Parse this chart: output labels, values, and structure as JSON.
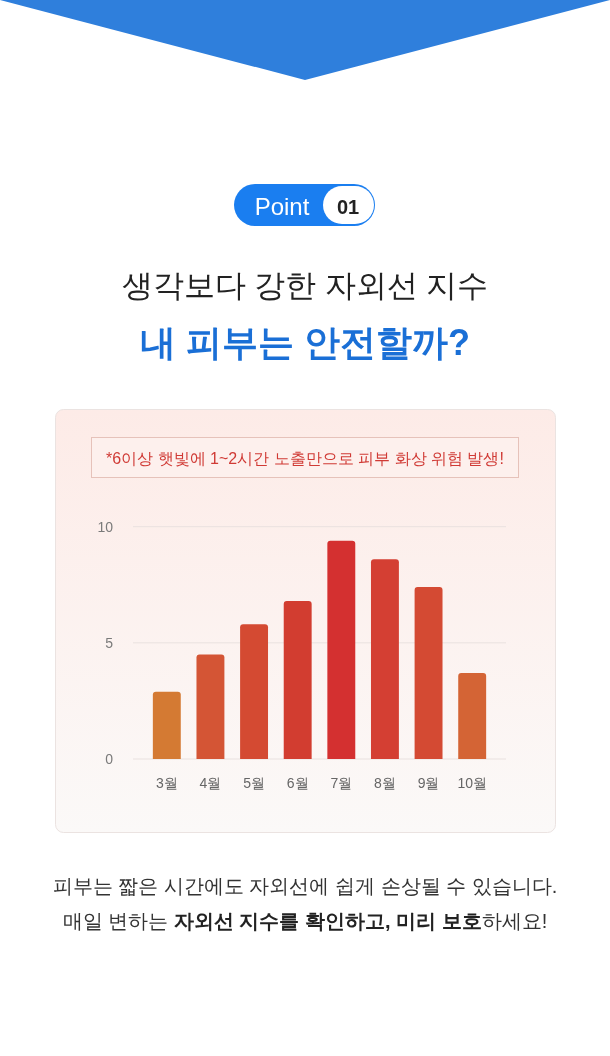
{
  "chart_data": {
    "type": "bar",
    "title": "생각보다 강한 자외선 지수",
    "subtitle": "내 피부는 안전할까?",
    "categories": [
      "3월",
      "4월",
      "5월",
      "6월",
      "7월",
      "8월",
      "9월",
      "10월"
    ],
    "values": [
      2.9,
      4.5,
      5.8,
      6.8,
      9.4,
      8.6,
      7.4,
      3.7
    ],
    "colors": [
      "#d47a33",
      "#d45535",
      "#d44a32",
      "#d23d30",
      "#d43030",
      "#d43f33",
      "#d44a33",
      "#d46435"
    ],
    "ylim": [
      0,
      10
    ],
    "yticks": [
      0,
      5,
      10
    ],
    "grid": "y",
    "annotations": [
      "Point",
      "01",
      "*6이상 햇빛에 1~2시간 노출만으로 피부 화상 위험 발생!",
      "피부는 짧은 시간에도 자외선에 쉽게 손상될 수 있습니다.",
      "매일 변하는 ",
      "자외선 지수를 확인하고, 미리 보호",
      "하세요!"
    ]
  }
}
